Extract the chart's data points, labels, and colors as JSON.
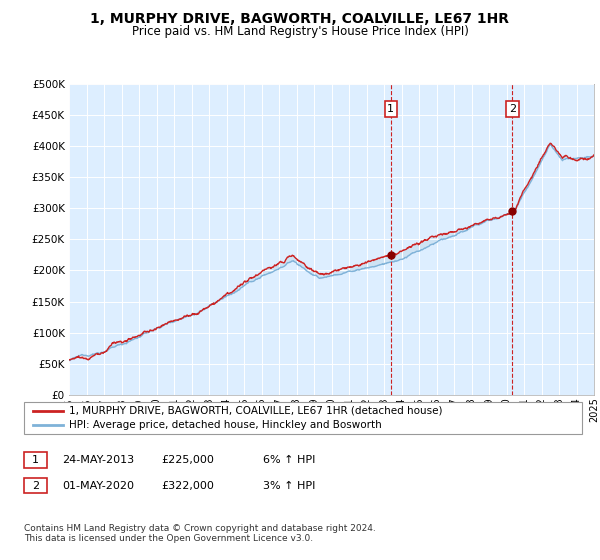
{
  "title": "1, MURPHY DRIVE, BAGWORTH, COALVILLE, LE67 1HR",
  "subtitle": "Price paid vs. HM Land Registry's House Price Index (HPI)",
  "legend_line1": "1, MURPHY DRIVE, BAGWORTH, COALVILLE, LE67 1HR (detached house)",
  "legend_line2": "HPI: Average price, detached house, Hinckley and Bosworth",
  "annotation1_date": "24-MAY-2013",
  "annotation1_price": "£225,000",
  "annotation1_hpi": "6% ↑ HPI",
  "annotation1_year": 2013.39,
  "annotation1_value": 225000,
  "annotation2_date": "01-MAY-2020",
  "annotation2_price": "£322,000",
  "annotation2_hpi": "3% ↑ HPI",
  "annotation2_year": 2020.33,
  "annotation2_value": 322000,
  "footer": "Contains HM Land Registry data © Crown copyright and database right 2024.\nThis data is licensed under the Open Government Licence v3.0.",
  "hpi_color": "#7fb2d8",
  "price_color": "#cc2222",
  "fill_color": "#c8dff0",
  "background_color": "#ddeeff",
  "ylim": [
    0,
    500000
  ],
  "yticks": [
    0,
    50000,
    100000,
    150000,
    200000,
    250000,
    300000,
    350000,
    400000,
    450000,
    500000
  ],
  "xstart": 1995,
  "xend": 2025
}
